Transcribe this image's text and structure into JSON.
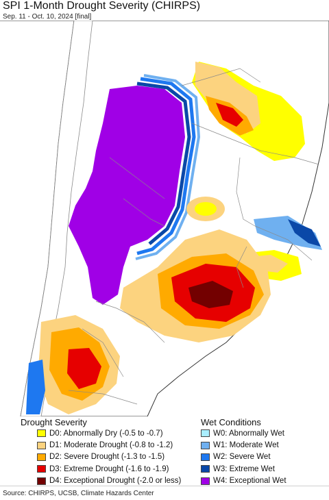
{
  "title": "SPI 1-Month Drought Severity (CHIRPS)",
  "subtitle": "Sep. 11 - Oct. 10, 2024 [final]",
  "colors": {
    "ocean": "#ffffff",
    "land": "#ffffff",
    "border": "#8a8a8a",
    "coast": "#333333"
  },
  "legend": {
    "drought_title": "Drought Severity",
    "wet_title": "Wet Conditions",
    "drought_items": [
      {
        "label": "D0: Abnormally Dry (-0.5 to -0.7)",
        "color": "#ffff00"
      },
      {
        "label": "D1: Moderate Drought (-0.8 to -1.2)",
        "color": "#fcd37f"
      },
      {
        "label": "D2: Severe Drought (-1.3 to -1.5)",
        "color": "#ffaa00"
      },
      {
        "label": "D3: Extreme Drought (-1.6 to -1.9)",
        "color": "#e60000"
      },
      {
        "label": "D4: Exceptional Drought (-2.0 or less)",
        "color": "#730000"
      }
    ],
    "wet_items": [
      {
        "label": "W0: Abnormally Wet",
        "color": "#aaeeff"
      },
      {
        "label": "W1: Moderate Wet",
        "color": "#6fb0f0"
      },
      {
        "label": "W2: Severe Wet",
        "color": "#1e78f0"
      },
      {
        "label": "W3: Extreme Wet",
        "color": "#0a48a8"
      },
      {
        "label": "W4: Exceptional Wet",
        "color": "#a000e6"
      }
    ]
  },
  "source": "Source: CHIRPS, UCSB, Climate Hazards Center"
}
